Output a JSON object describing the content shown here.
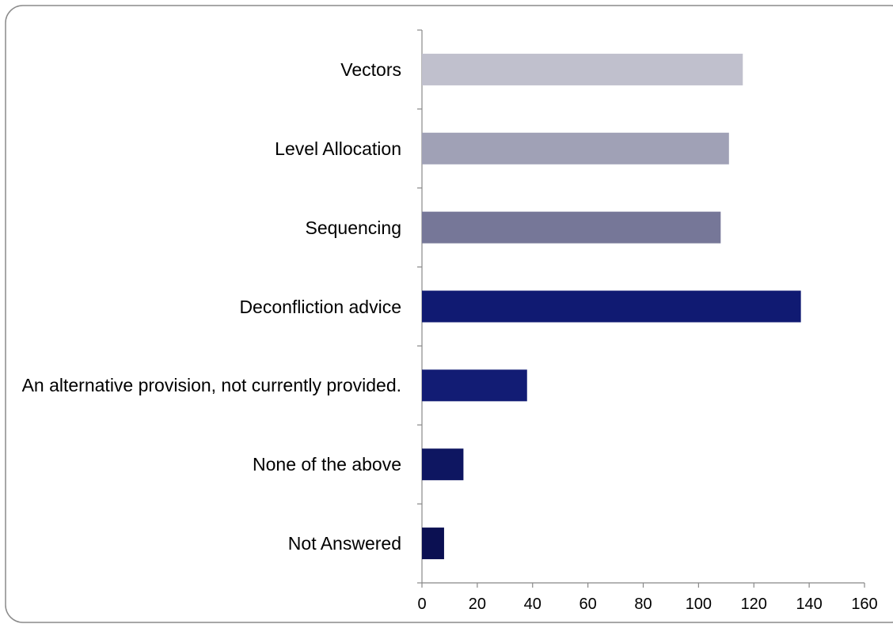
{
  "chart_data": {
    "type": "hbar",
    "categories": [
      "Vectors",
      "Level Allocation",
      "Sequencing",
      "Deconfliction advice",
      "An alternative provision, not currently provided.",
      "None of the above",
      "Not Answered"
    ],
    "values": [
      116,
      111,
      108,
      137,
      38,
      15,
      8
    ],
    "colors": [
      "#c0c0cd",
      "#a0a1b6",
      "#767798",
      "#101a72",
      "#121c74",
      "#0e1661",
      "#0b1052"
    ],
    "xlim": [
      0,
      160
    ],
    "xticks": [
      0,
      20,
      40,
      60,
      80,
      100,
      120,
      140,
      160
    ],
    "grid": false
  }
}
